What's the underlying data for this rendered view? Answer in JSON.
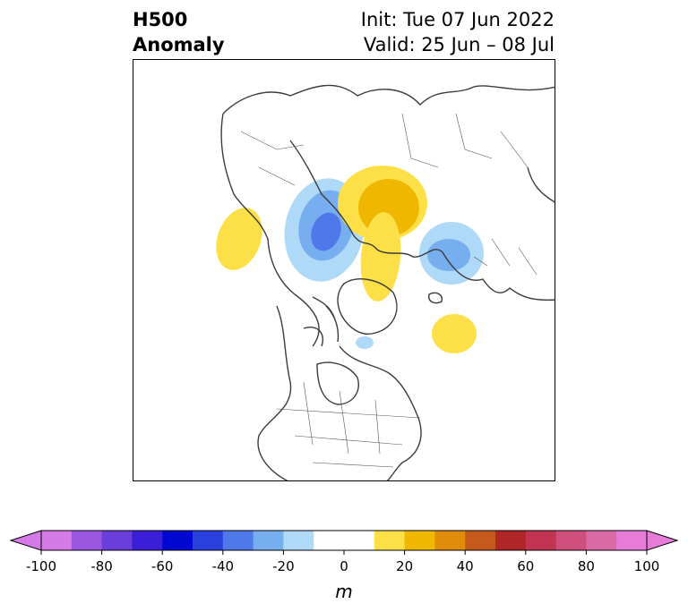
{
  "header": {
    "title_line1": "H500",
    "title_line2": "Anomaly",
    "init_text": "Init: Tue 07 Jun 2022",
    "valid_text": "Valid: 25 Jun – 08 Jul"
  },
  "colorbar": {
    "units": "m",
    "bounds": [
      -100,
      -90,
      -80,
      -70,
      -60,
      -50,
      -40,
      -30,
      -20,
      -10,
      10,
      20,
      30,
      40,
      50,
      60,
      70,
      80,
      90,
      100
    ],
    "colors": [
      "#d57ae9",
      "#9c57e0",
      "#6b3ddc",
      "#3b1fd8",
      "#0008d2",
      "#2a41dd",
      "#4f78e8",
      "#77aef0",
      "#aed9f7",
      "#ffffff",
      "#fde047",
      "#f0b700",
      "#e08c0b",
      "#c65a1c",
      "#b02526",
      "#c23452",
      "#cf4e7c",
      "#d96aa8",
      "#e77bd8"
    ],
    "extend_min_color": "#d57ae9",
    "extend_max_color": "#e77bd8",
    "ticks": [
      "-100",
      "-80",
      "-60",
      "-40",
      "-20",
      "0",
      "20",
      "40",
      "60",
      "80",
      "100"
    ]
  },
  "map": {
    "projection": "north-polar-stereographic",
    "anomaly_features": [
      {
        "sign": "positive",
        "region": "Alaska / Bering",
        "peak_level": 1
      },
      {
        "sign": "negative",
        "region": "East Siberian Sea",
        "peak_level": 3
      },
      {
        "sign": "positive",
        "region": "Laptev / Kara Sea",
        "peak_level": 2
      },
      {
        "sign": "positive",
        "region": "Arctic Ocean near Greenland",
        "peak_level": 1
      },
      {
        "sign": "negative",
        "region": "Scandinavia / Barents",
        "peak_level": 2
      },
      {
        "sign": "positive",
        "region": "North Atlantic",
        "peak_level": 1
      },
      {
        "sign": "negative",
        "region": "Hudson Bay",
        "peak_level": 1
      }
    ]
  }
}
